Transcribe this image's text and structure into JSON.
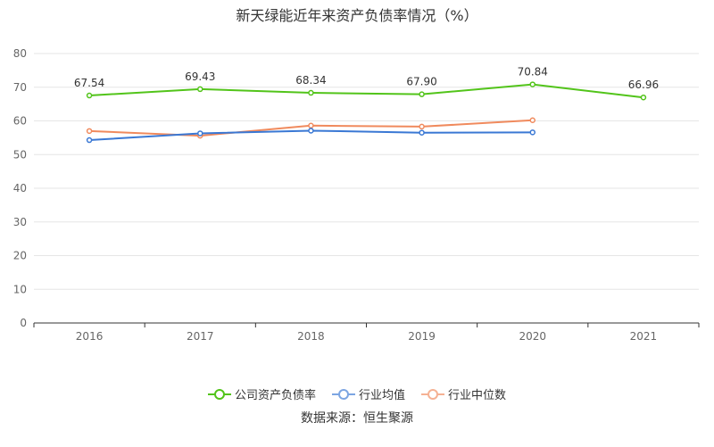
{
  "chart_data": {
    "type": "line",
    "title": "新天绿能近年来资产负债率情况（%）",
    "categories": [
      "2016",
      "2017",
      "2018",
      "2019",
      "2020",
      "2021"
    ],
    "ylim": [
      0,
      80
    ],
    "yticks": [
      "0",
      "10",
      "20",
      "30",
      "40",
      "50",
      "60",
      "70",
      "80"
    ],
    "grid": true,
    "legend_position": "bottom",
    "series": [
      {
        "name": "公司资产负债率",
        "color": "#52c41a",
        "values": [
          67.54,
          69.43,
          68.34,
          67.9,
          70.84,
          66.96
        ],
        "labels": [
          "67.54",
          "69.43",
          "68.34",
          "67.90",
          "70.84",
          "66.96"
        ]
      },
      {
        "name": "行业均值",
        "color": "#3a78d4",
        "values": [
          54.3,
          56.3,
          57.1,
          56.5,
          56.6,
          null
        ]
      },
      {
        "name": "行业中位数",
        "color": "#f08a5d",
        "values": [
          57.0,
          55.6,
          58.6,
          58.3,
          60.2,
          null
        ]
      }
    ],
    "source": "数据来源：恒生聚源"
  }
}
